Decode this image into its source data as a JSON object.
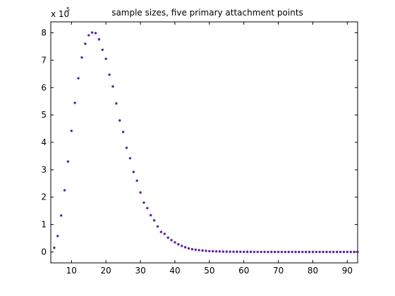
{
  "chart_data": {
    "type": "scatter",
    "title": "sample sizes, five primary attachment points",
    "xlabel": "",
    "ylabel": "",
    "y_multiplier_label": "x 10",
    "y_multiplier_exponent": "5",
    "xlim": [
      4,
      93
    ],
    "ylim": [
      -0.4,
      8.4
    ],
    "x_ticks": [
      10,
      20,
      30,
      40,
      50,
      60,
      70,
      80,
      90
    ],
    "y_ticks": [
      0,
      1,
      2,
      3,
      4,
      5,
      6,
      7,
      8
    ],
    "grid": false,
    "marker_color": "#5a1fbf",
    "series": [
      {
        "x": [
          5,
          6,
          7,
          8,
          9,
          10,
          11,
          12,
          13,
          14,
          15,
          16,
          17,
          18,
          19,
          20,
          21,
          22,
          23,
          24,
          25,
          26,
          27,
          28,
          29,
          30,
          31,
          32,
          33,
          34,
          35,
          36,
          37,
          38,
          39,
          40,
          41,
          42,
          43,
          44,
          45,
          46,
          47,
          48,
          49,
          50,
          51,
          52,
          53,
          54,
          55,
          56,
          57,
          58,
          59,
          60,
          61,
          62,
          63,
          64,
          65,
          66,
          67,
          68,
          69,
          70,
          71,
          72,
          73,
          74,
          75,
          76,
          77,
          78,
          79,
          80,
          81,
          82,
          83,
          84,
          85,
          86,
          87,
          88,
          89,
          90,
          91,
          92,
          93
        ],
        "y": [
          0.15,
          0.58,
          1.33,
          2.25,
          3.3,
          4.42,
          5.44,
          6.34,
          7.1,
          7.6,
          7.91,
          8.01,
          7.99,
          7.76,
          7.38,
          7.05,
          6.47,
          6.04,
          5.42,
          4.8,
          4.38,
          3.8,
          3.42,
          2.92,
          2.6,
          2.17,
          1.8,
          1.6,
          1.34,
          1.15,
          0.93,
          0.73,
          0.66,
          0.52,
          0.43,
          0.35,
          0.28,
          0.22,
          0.17,
          0.13,
          0.1,
          0.08,
          0.065,
          0.05,
          0.04,
          0.03,
          0.025,
          0.02,
          0.015,
          0.012,
          0.01,
          0.008,
          0.006,
          0.005,
          0.004,
          0.003,
          0.002,
          0.002,
          0.001,
          0.001,
          0.001,
          0.001,
          0,
          0,
          0,
          0,
          0,
          0,
          0,
          0,
          0,
          0,
          0,
          0,
          0,
          0,
          0,
          0,
          0,
          0,
          0,
          0,
          0,
          0,
          0,
          0,
          0,
          0,
          0
        ]
      }
    ]
  }
}
